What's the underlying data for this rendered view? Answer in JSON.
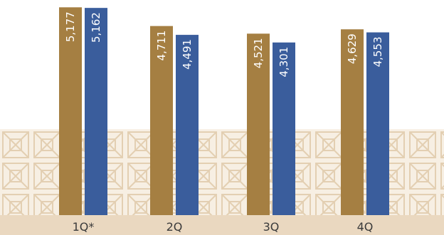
{
  "colors": {
    "series_a": "#a57f42",
    "series_b": "#3a5d9c",
    "band": "#ead8c0",
    "lattice_fill": "#f7efe3",
    "lattice_line": "#e3cfb2"
  },
  "chart_data": {
    "type": "bar",
    "title": "",
    "xlabel": "",
    "ylabel": "",
    "categories": [
      "1Q*",
      "2Q",
      "3Q",
      "4Q"
    ],
    "series": [
      {
        "values": [
          5177,
          4711,
          4521,
          4629
        ],
        "labels": [
          "5,177",
          "4,711",
          "4,521",
          "4,629"
        ]
      },
      {
        "values": [
          5162,
          4491,
          4301,
          4553
        ],
        "labels": [
          "5,162",
          "4,491",
          "4,301",
          "4,553"
        ]
      }
    ],
    "grid": false,
    "legend": "none"
  }
}
